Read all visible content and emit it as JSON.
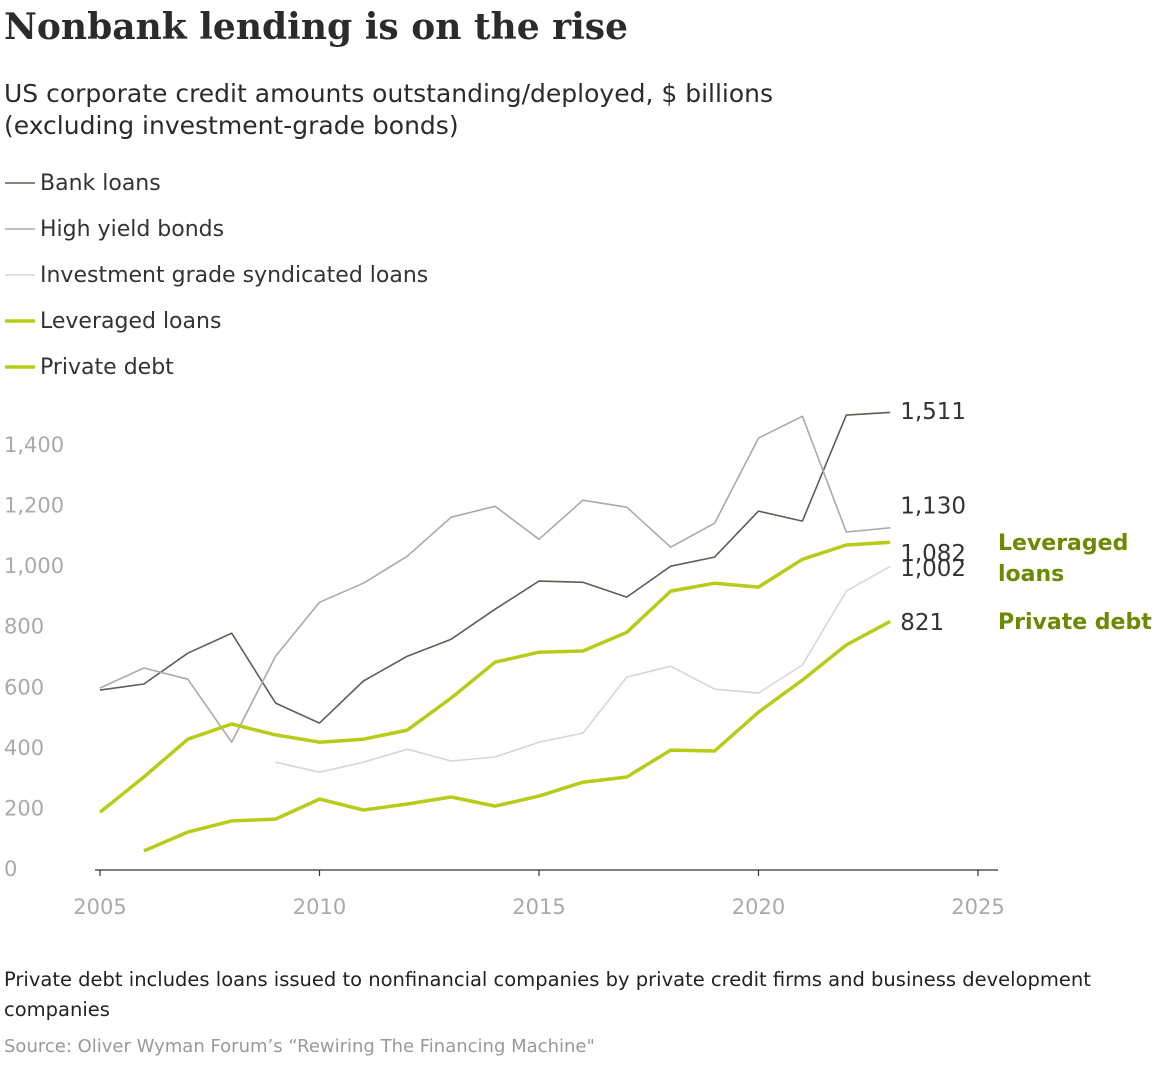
{
  "chart_data": {
    "type": "line",
    "title": "Nonbank lending is on the rise",
    "subtitle": "US corporate credit amounts outstanding/deployed, $ billions (excluding investment-grade bonds)",
    "note": "Private debt includes loans issued to nonfinancial companies by private credit firms and business development companies",
    "source": "Source: Oliver Wyman Forum’s “Rewiring The Financing Machine\"",
    "x": [
      2005,
      2006,
      2007,
      2008,
      2009,
      2010,
      2011,
      2012,
      2013,
      2014,
      2015,
      2016,
      2017,
      2018,
      2019,
      2020,
      2021,
      2022,
      2023
    ],
    "series": [
      {
        "name": "Bank loans",
        "color": "#5e5e55",
        "width": 1.6,
        "values": [
          594,
          614,
          716,
          782,
          551,
          485,
          624,
          706,
          762,
          861,
          954,
          950,
          901,
          1003,
          1033,
          1185,
          1152,
          1502,
          1511
        ],
        "value_labels": [
          null,
          null,
          null,
          null,
          null,
          null,
          null,
          null,
          null,
          null,
          null,
          null,
          null,
          null,
          null,
          null,
          null,
          null,
          "1,511"
        ]
      },
      {
        "name": "High yield bonds",
        "color": "#aaaaaa",
        "width": 1.6,
        "values": [
          601,
          667,
          630,
          422,
          706,
          884,
          947,
          1036,
          1165,
          1201,
          1092,
          1221,
          1198,
          1066,
          1145,
          1426,
          1498,
          1116,
          1130
        ],
        "value_labels": [
          null,
          null,
          null,
          null,
          null,
          null,
          null,
          null,
          null,
          null,
          null,
          null,
          null,
          null,
          null,
          null,
          null,
          null,
          "1,130"
        ]
      },
      {
        "name": "Investment grade syndicated loans",
        "color": "#d6d6d6",
        "width": 1.6,
        "values": [
          null,
          null,
          null,
          null,
          356,
          323,
          356,
          399,
          360,
          373,
          422,
          452,
          637,
          673,
          597,
          584,
          677,
          921,
          1002
        ],
        "value_labels": [
          null,
          null,
          null,
          null,
          null,
          null,
          null,
          null,
          null,
          null,
          null,
          null,
          null,
          null,
          null,
          null,
          null,
          null,
          "1,002"
        ]
      },
      {
        "name": "Leveraged loans",
        "color": "#b7cc18",
        "width": 3.5,
        "values": [
          191,
          307,
          432,
          482,
          446,
          422,
          432,
          462,
          568,
          686,
          719,
          723,
          785,
          921,
          947,
          934,
          1026,
          1073,
          1082
        ],
        "value_labels": [
          null,
          null,
          null,
          null,
          null,
          null,
          null,
          null,
          null,
          null,
          null,
          null,
          null,
          null,
          null,
          null,
          null,
          null,
          "1,082"
        ]
      },
      {
        "name": "Private debt",
        "color": "#b7cc18",
        "width": 3.5,
        "values": [
          null,
          63,
          125,
          162,
          168,
          234,
          198,
          218,
          241,
          211,
          244,
          290,
          307,
          396,
          393,
          521,
          627,
          743,
          821
        ],
        "value_labels": [
          null,
          null,
          null,
          null,
          null,
          null,
          null,
          null,
          null,
          null,
          null,
          null,
          null,
          null,
          null,
          null,
          null,
          null,
          "821"
        ]
      }
    ],
    "xlim": [
      2005,
      2025
    ],
    "xticks": [
      2005,
      2010,
      2015,
      2020,
      2025
    ],
    "ylim": [
      0,
      1400
    ],
    "yticks": [
      0,
      200,
      400,
      600,
      800,
      {
        "value": 1000,
        "label": "1,000"
      },
      {
        "value": 1200,
        "label": "1,200"
      },
      {
        "value": 1400,
        "label": "1,400"
      }
    ],
    "grid": false
  }
}
